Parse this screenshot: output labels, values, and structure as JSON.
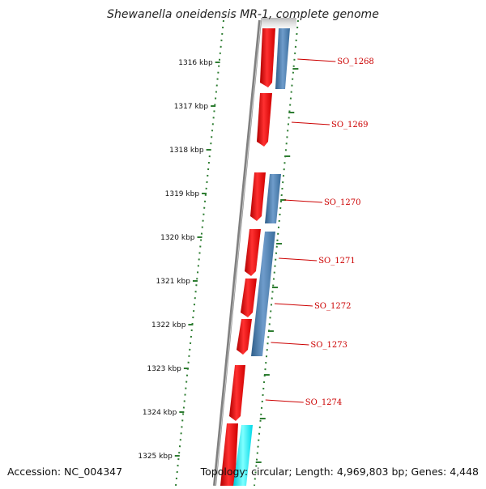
{
  "title": "Shewanella oneidensis MR-1, complete genome",
  "footer": {
    "accession": "Accession: NC_004347",
    "topology": "Topology: circular; Length: 4,969,803 bp; Genes: 4,448"
  },
  "colors": {
    "forward_cds": "#ff0000",
    "reverse_cds": "#4682b4",
    "other_feature": "#00ffff",
    "tick_marks": "#2e7d32",
    "gene_labels": "#cc0000",
    "backbone": "#808080"
  },
  "ticks": [
    "1316 kbp",
    "1317 kbp",
    "1318 kbp",
    "1319 kbp",
    "1320 kbp",
    "1321 kbp",
    "1322 kbp",
    "1323 kbp",
    "1324 kbp",
    "1325 kbp"
  ],
  "genes": [
    "SO_1268",
    "SO_1269",
    "SO_1270",
    "SO_1271",
    "SO_1272",
    "SO_1273",
    "SO_1274"
  ]
}
